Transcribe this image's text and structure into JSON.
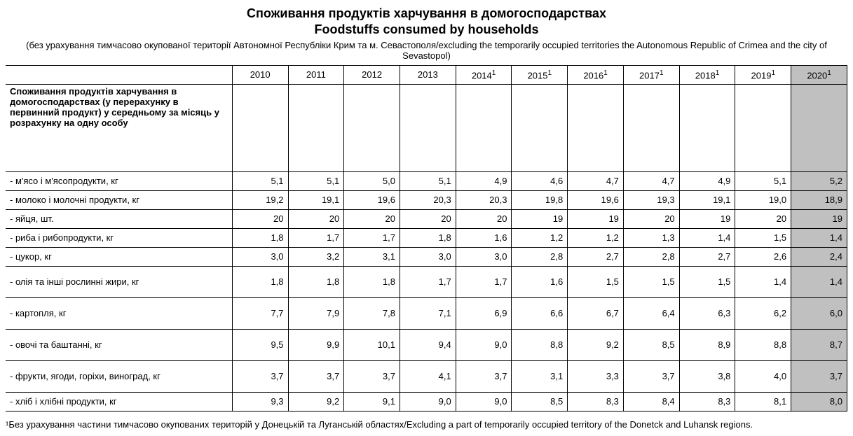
{
  "title_uk": "Споживання продуктів харчування в домогосподарствах",
  "title_en": "Foodstuffs consumed by households",
  "subtitle": "(без урахування тимчасово окупованої території Автономної Республіки Крим та м. Севастополя/excluding the temporarily occupied territories the Autonomous Republic of Crimea and the city of Sevastopol)",
  "section_header": "Споживання продуктів харчування в домогосподарствах (у перерахунку в первинний продукт) у середньому за місяць у розрахунку на одну особу",
  "footnote": "¹Без урахування частини тимчасово окупованих територій у Донецькій та Луганській областях/Excluding a part of temporarily occupied territory of the Donetck and Luhansk regions.",
  "colors": {
    "highlight_bg": "#c0c0c0",
    "border": "#000000",
    "background": "#ffffff",
    "text": "#000000"
  },
  "typography": {
    "font_family": "Verdana, Arial, sans-serif",
    "title_fontsize_pt": 14,
    "body_fontsize_pt": 10
  },
  "years": [
    {
      "label": "2010",
      "sup": ""
    },
    {
      "label": "2011",
      "sup": ""
    },
    {
      "label": "2012",
      "sup": ""
    },
    {
      "label": "2013",
      "sup": ""
    },
    {
      "label": "2014",
      "sup": "1"
    },
    {
      "label": "2015",
      "sup": "1"
    },
    {
      "label": "2016",
      "sup": "1"
    },
    {
      "label": "2017",
      "sup": "1"
    },
    {
      "label": "2018",
      "sup": "1"
    },
    {
      "label": "2019",
      "sup": "1"
    },
    {
      "label": "2020",
      "sup": "1"
    }
  ],
  "rows": [
    {
      "label": "- м'ясо і м'ясопродукти, кг",
      "tall": false,
      "values": [
        "5,1",
        "5,1",
        "5,0",
        "5,1",
        "4,9",
        "4,6",
        "4,7",
        "4,7",
        "4,9",
        "5,1",
        "5,2"
      ]
    },
    {
      "label": "- молоко і молочні продукти, кг",
      "tall": false,
      "values": [
        "19,2",
        "19,1",
        "19,6",
        "20,3",
        "20,3",
        "19,8",
        "19,6",
        "19,3",
        "19,1",
        "19,0",
        "18,9"
      ]
    },
    {
      "label": "- яйця, шт.",
      "tall": false,
      "values": [
        "20",
        "20",
        "20",
        "20",
        "20",
        "19",
        "19",
        "20",
        "19",
        "20",
        "19"
      ]
    },
    {
      "label": "- риба і рибопродукти, кг",
      "tall": false,
      "values": [
        "1,8",
        "1,7",
        "1,7",
        "1,8",
        "1,6",
        "1,2",
        "1,2",
        "1,3",
        "1,4",
        "1,5",
        "1,4"
      ]
    },
    {
      "label": "- цукор, кг",
      "tall": false,
      "values": [
        "3,0",
        "3,2",
        "3,1",
        "3,0",
        "3,0",
        "2,8",
        "2,7",
        "2,8",
        "2,7",
        "2,6",
        "2,4"
      ]
    },
    {
      "label": "- олія та інші рослинні жири, кг",
      "tall": true,
      "values": [
        "1,8",
        "1,8",
        "1,8",
        "1,7",
        "1,7",
        "1,6",
        "1,5",
        "1,5",
        "1,5",
        "1,4",
        "1,4"
      ]
    },
    {
      "label": "- картопля, кг",
      "tall": true,
      "values": [
        "7,7",
        "7,9",
        "7,8",
        "7,1",
        "6,9",
        "6,6",
        "6,7",
        "6,4",
        "6,3",
        "6,2",
        "6,0"
      ]
    },
    {
      "label": "- овочі та баштанні, кг",
      "tall": true,
      "values": [
        "9,5",
        "9,9",
        "10,1",
        "9,4",
        "9,0",
        "8,8",
        "9,2",
        "8,5",
        "8,9",
        "8,8",
        "8,7"
      ]
    },
    {
      "label": "- фрукти, ягоди, горіхи, виноград, кг",
      "tall": true,
      "values": [
        "3,7",
        "3,7",
        "3,7",
        "4,1",
        "3,7",
        "3,1",
        "3,3",
        "3,7",
        "3,8",
        "4,0",
        "3,7"
      ]
    },
    {
      "label": "- хліб і хлібні продукти, кг",
      "tall": false,
      "values": [
        "9,3",
        "9,2",
        "9,1",
        "9,0",
        "9,0",
        "8,5",
        "8,3",
        "8,4",
        "8,3",
        "8,1",
        "8,0"
      ]
    }
  ]
}
